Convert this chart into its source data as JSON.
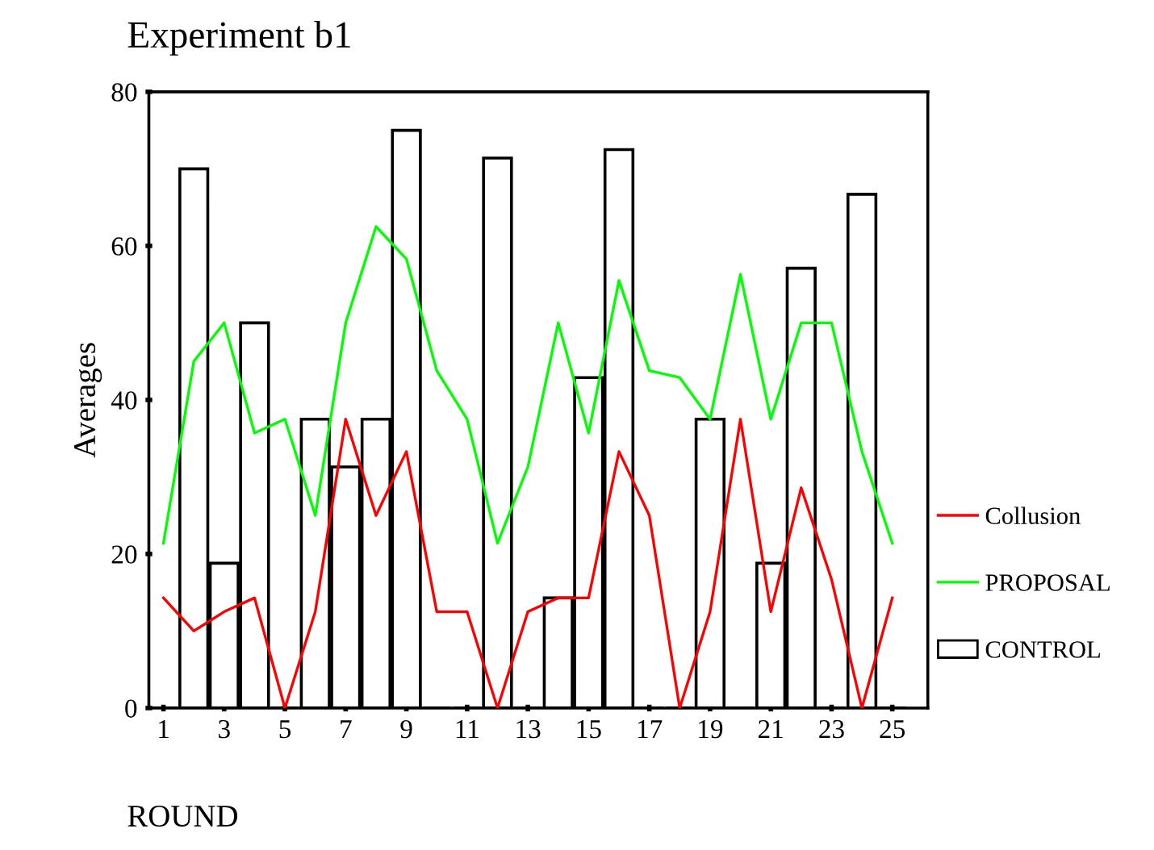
{
  "chart_data": {
    "type": "bar",
    "title": "Experiment b1",
    "xlabel": "ROUND",
    "ylabel": "Averages",
    "categories": [
      "1",
      null,
      "3",
      null,
      "5",
      null,
      "7",
      null,
      "9",
      null,
      "11",
      null,
      "13",
      null,
      "15",
      null,
      "17",
      null,
      "19",
      null,
      "21",
      null,
      "23",
      null,
      "25"
    ],
    "series": [
      {
        "name": "Collusion",
        "type": "line",
        "color": "#ff0000",
        "values": [
          14.3,
          10,
          12.5,
          14.3,
          0,
          12.5,
          37.5,
          25,
          33.3,
          12.5,
          12.5,
          0,
          12.5,
          14.3,
          14.3,
          33.3,
          25,
          0,
          12.5,
          37.5,
          12.5,
          28.6,
          16.7,
          0,
          14.3
        ]
      },
      {
        "name": "PROPOSAL",
        "type": "line",
        "color": "#00ff00",
        "values": [
          21.4,
          45,
          50,
          35.7,
          37.5,
          25,
          50,
          62.5,
          58.3,
          43.8,
          37.5,
          21.4,
          31.3,
          50,
          35.7,
          55.5,
          43.8,
          42.9,
          37.5,
          56.3,
          37.5,
          50,
          50,
          33.3,
          21.4
        ]
      },
      {
        "name": "CONTROL",
        "color": "#ffffff",
        "values": [
          0,
          70,
          18.8,
          50,
          0,
          37.5,
          31.3,
          37.5,
          75,
          0,
          0,
          71.4,
          0,
          14.3,
          42.9,
          72.5,
          0,
          0,
          37.5,
          0,
          18.8,
          57.1,
          0,
          66.7,
          0
        ]
      }
    ],
    "ylim": [
      0,
      80
    ],
    "yticks": [
      0,
      20,
      40,
      60,
      80
    ],
    "grid": false,
    "legend": "right"
  }
}
